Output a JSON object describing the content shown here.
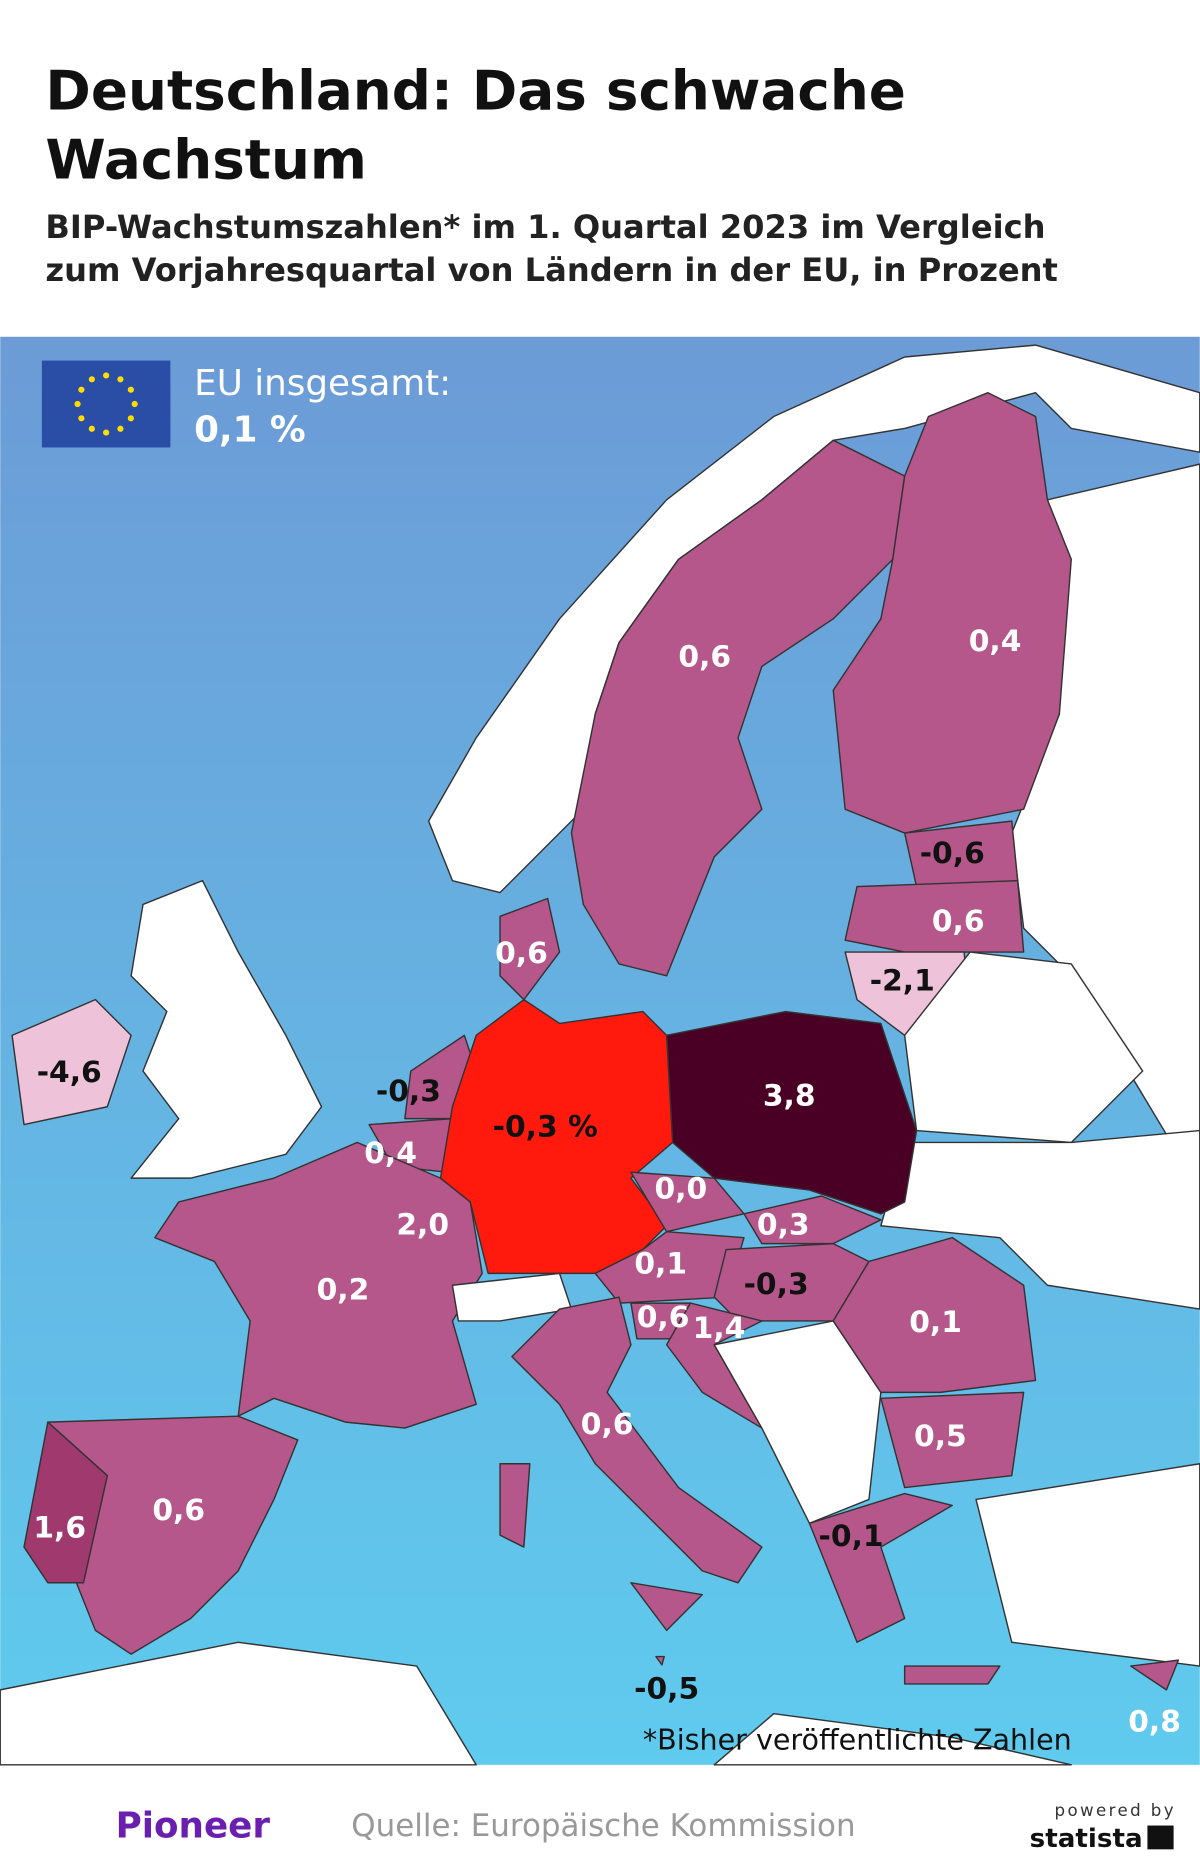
{
  "header": {
    "title_lines": [
      "Deutschland: Das schwache",
      "Wachstum"
    ],
    "subtitle_lines": [
      "BIP-Wachstumszahlen* im 1. Quartal 2023 im Vergleich",
      "zum Vorjahresquartal von Ländern in der EU, in Prozent"
    ]
  },
  "eu_box": {
    "label": "EU insgesamt:",
    "value": "0,1 %"
  },
  "map": {
    "labels": [
      "0,6",
      "0,4",
      "-0,6",
      "0,6",
      "-2,1",
      "0,6",
      "-4,6",
      "-0,3",
      "-0,3 %",
      "3,8",
      "0,4",
      "2,0",
      "0,0",
      "0,3",
      "0,1",
      "-0,3",
      "0,6",
      "1,4",
      "0,1",
      "0,2",
      "0,6",
      "0,5",
      "-0,1",
      "0,6",
      "1,6",
      "-0,5",
      "0,8"
    ]
  },
  "footnote": "*Bisher veröffentlichte Zahlen",
  "footer": {
    "brand": "Pioneer",
    "source": "Quelle: Europäische Kommission",
    "powered_by": "powered by",
    "statista": "statista"
  }
}
